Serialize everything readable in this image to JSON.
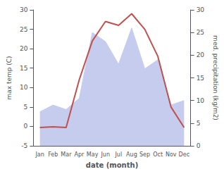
{
  "chart_data": {
    "type": "line",
    "xlabel": "date (month)",
    "ylabel": "max temp (C)",
    "y2label": "med. precipitation (kg/m2)",
    "categories": [
      "Jan",
      "Feb",
      "Mar",
      "Apr",
      "May",
      "Jun",
      "Jul",
      "Aug",
      "Sep",
      "Oct",
      "Nov",
      "Dec"
    ],
    "series": [
      {
        "type": "area",
        "axis": "y2",
        "color": "#c5ccee",
        "values": [
          7.5,
          9.0,
          8.0,
          10.5,
          25.0,
          23.0,
          18.0,
          26.0,
          17.0,
          19.0,
          9.0,
          10.0
        ]
      },
      {
        "type": "line",
        "color": "#c0504d",
        "values": [
          -0.3,
          -0.1,
          -0.3,
          12.0,
          22.0,
          27.0,
          26.0,
          29.0,
          25.0,
          18.0,
          5.0,
          -0.3
        ]
      }
    ],
    "ylim": [
      -5,
      30
    ],
    "yticks": [
      -5,
      0,
      5,
      10,
      15,
      20,
      25,
      30
    ],
    "y2lim": [
      0,
      30
    ],
    "y2ticks": [
      0,
      5,
      10,
      15,
      20,
      25,
      30
    ],
    "grid": false
  }
}
